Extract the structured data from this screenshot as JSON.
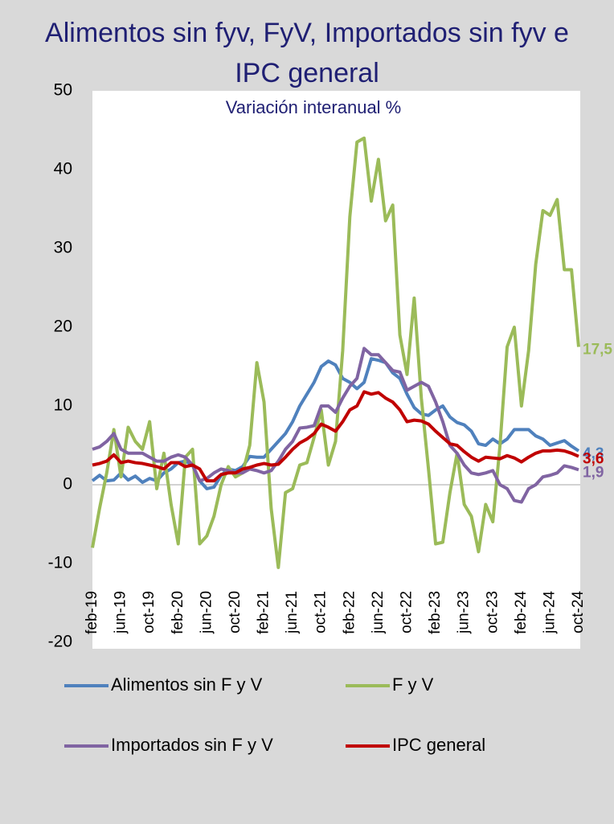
{
  "chart_data": {
    "type": "line",
    "title": "Alimentos sin fyv, FyV, Importados sin fyv e IPC general",
    "subtitle": "Variación interanual %",
    "categories": [
      "feb-19",
      null,
      null,
      null,
      "jun-19",
      null,
      null,
      null,
      "oct-19",
      null,
      null,
      null,
      "feb-20",
      null,
      null,
      null,
      "jun-20",
      null,
      null,
      null,
      "oct-20",
      null,
      null,
      null,
      "feb-21",
      null,
      null,
      null,
      "jun-21",
      null,
      null,
      null,
      "oct-21",
      null,
      null,
      null,
      "feb-22",
      null,
      null,
      null,
      "jun-22",
      null,
      null,
      null,
      "oct-22",
      null,
      null,
      null,
      "feb-23",
      null,
      null,
      null,
      "jun-23",
      null,
      null,
      null,
      "oct-23",
      null,
      null,
      null,
      "feb-24",
      null,
      null,
      null,
      "jun-24",
      null,
      null,
      null,
      "oct-24"
    ],
    "ylim": [
      -20,
      50
    ],
    "yticks": [
      -20,
      -10,
      0,
      10,
      20,
      30,
      40,
      50
    ],
    "grid": false,
    "series": [
      {
        "name": "Alimentos sin F y V",
        "color": "#4f81bd",
        "values": [
          0.5,
          1.2,
          0.5,
          0.6,
          1.5,
          0.6,
          1.1,
          0.3,
          0.8,
          0.5,
          1.5,
          2.0,
          2.8,
          3.0,
          2.5,
          0.5,
          -0.5,
          -0.3,
          1.2,
          2.0,
          1.8,
          2.3,
          3.6,
          3.5,
          3.5,
          4.5,
          5.5,
          6.5,
          8.0,
          10.0,
          11.5,
          13.0,
          15.0,
          15.7,
          15.2,
          13.5,
          13.0,
          12.2,
          13.0,
          16.0,
          15.8,
          15.5,
          14.2,
          13.5,
          11.5,
          9.8,
          9.0,
          8.8,
          9.5,
          10.0,
          8.6,
          7.9,
          7.6,
          6.8,
          5.2,
          5.0,
          5.8,
          5.2,
          5.8,
          7.0,
          7.0,
          7.0,
          6.2,
          5.8,
          5.0,
          5.3,
          5.6,
          4.9,
          4.3
        ],
        "value_labels": [
          null,
          null,
          null,
          null,
          null,
          null,
          null,
          null,
          null,
          null,
          null,
          null,
          null,
          null,
          null,
          null,
          null,
          null,
          null,
          null,
          null,
          null,
          null,
          null,
          null,
          null,
          null,
          null,
          null,
          null,
          null,
          null,
          null,
          null,
          null,
          null,
          null,
          null,
          null,
          null,
          null,
          null,
          null,
          null,
          null,
          null,
          null,
          null,
          null,
          null,
          null,
          null,
          null,
          null,
          null,
          null,
          null,
          null,
          null,
          null,
          null,
          null,
          null,
          null,
          null,
          null,
          null,
          null,
          "4,3"
        ]
      },
      {
        "name": "F y V",
        "color": "#9bbb59",
        "values": [
          -8,
          -3,
          1.5,
          7,
          1,
          7.3,
          5.5,
          4.5,
          8,
          -0.5,
          4,
          -2.5,
          -7.5,
          3.5,
          4.5,
          -7.5,
          -6.5,
          -4,
          0,
          2.3,
          1,
          1.5,
          5,
          15.5,
          10.5,
          -3,
          -10.5,
          -1,
          -0.5,
          2.5,
          2.8,
          6,
          9.5,
          2.5,
          5.5,
          17,
          34,
          43.5,
          44,
          36,
          41.3,
          33.5,
          35.5,
          19,
          14,
          23.7,
          11,
          2,
          -7.5,
          -7.3,
          -1,
          4,
          -2.5,
          -4,
          -8.5,
          -2.5,
          -4.7,
          5,
          17.5,
          20,
          10,
          17,
          28,
          34.8,
          34.2,
          36.2,
          27.3,
          27.3,
          17.5
        ],
        "value_labels": [
          null,
          null,
          null,
          null,
          null,
          null,
          null,
          null,
          null,
          null,
          null,
          null,
          null,
          null,
          null,
          null,
          null,
          null,
          null,
          null,
          null,
          null,
          null,
          null,
          null,
          null,
          null,
          null,
          null,
          null,
          null,
          null,
          null,
          null,
          null,
          null,
          null,
          null,
          null,
          null,
          null,
          null,
          null,
          null,
          null,
          null,
          null,
          null,
          null,
          null,
          null,
          null,
          null,
          null,
          null,
          null,
          null,
          null,
          null,
          null,
          null,
          null,
          null,
          null,
          null,
          null,
          null,
          null,
          "17,5"
        ]
      },
      {
        "name": "Importados sin F y V",
        "color": "#8064a2",
        "values": [
          4.5,
          4.8,
          5.5,
          6.5,
          4.5,
          4,
          4,
          4,
          3.5,
          3,
          3,
          3.5,
          3.8,
          3.5,
          2.5,
          0.5,
          0.8,
          1.5,
          2,
          1.8,
          1.5,
          1.5,
          2,
          1.8,
          1.5,
          1.8,
          3,
          4.5,
          5.5,
          7.2,
          7.3,
          7.5,
          10,
          10,
          9.2,
          11,
          12.5,
          13.5,
          17.3,
          16.5,
          16.5,
          15.5,
          14.5,
          14.3,
          12,
          12.5,
          13,
          12.5,
          10.5,
          8,
          5,
          4,
          2.5,
          1.5,
          1.3,
          1.5,
          1.8,
          0,
          -0.5,
          -2,
          -2.2,
          -0.5,
          0,
          1,
          1.2,
          1.5,
          2.4,
          2.2,
          1.9
        ],
        "value_labels": [
          null,
          null,
          null,
          null,
          null,
          null,
          null,
          null,
          null,
          null,
          null,
          null,
          null,
          null,
          null,
          null,
          null,
          null,
          null,
          null,
          null,
          null,
          null,
          null,
          null,
          null,
          null,
          null,
          null,
          null,
          null,
          null,
          null,
          null,
          null,
          null,
          null,
          null,
          null,
          null,
          null,
          null,
          null,
          null,
          null,
          null,
          null,
          null,
          null,
          null,
          null,
          null,
          null,
          null,
          null,
          null,
          null,
          null,
          null,
          null,
          null,
          null,
          null,
          null,
          null,
          null,
          null,
          null,
          "1,9"
        ]
      },
      {
        "name": "IPC general",
        "color": "#c00000",
        "values": [
          2.5,
          2.7,
          3,
          3.8,
          2.8,
          3,
          2.8,
          2.7,
          2.5,
          2.3,
          2,
          2.8,
          2.8,
          2.3,
          2.5,
          2,
          0.5,
          0.5,
          1.3,
          1.5,
          1.5,
          2,
          2.2,
          2.5,
          2.7,
          2.5,
          2.6,
          3.5,
          4.5,
          5.3,
          5.8,
          6.5,
          7.7,
          7.3,
          6.8,
          8,
          9.5,
          10,
          11.8,
          11.5,
          11.7,
          11,
          10.5,
          9.5,
          8,
          8.2,
          8.1,
          7.7,
          6.8,
          6,
          5.2,
          5,
          4.2,
          3.5,
          3,
          3.5,
          3.4,
          3.3,
          3.7,
          3.4,
          2.9,
          3.5,
          4,
          4.3,
          4.3,
          4.4,
          4.3,
          4,
          3.6
        ],
        "value_labels": [
          null,
          null,
          null,
          null,
          null,
          null,
          null,
          null,
          null,
          null,
          null,
          null,
          null,
          null,
          null,
          null,
          null,
          null,
          null,
          null,
          null,
          null,
          null,
          null,
          null,
          null,
          null,
          null,
          null,
          null,
          null,
          null,
          null,
          null,
          null,
          null,
          null,
          null,
          null,
          null,
          null,
          null,
          null,
          null,
          null,
          null,
          null,
          null,
          null,
          null,
          null,
          null,
          null,
          null,
          null,
          null,
          null,
          null,
          null,
          null,
          null,
          null,
          null,
          null,
          null,
          null,
          null,
          null,
          "3,6"
        ]
      }
    ]
  }
}
